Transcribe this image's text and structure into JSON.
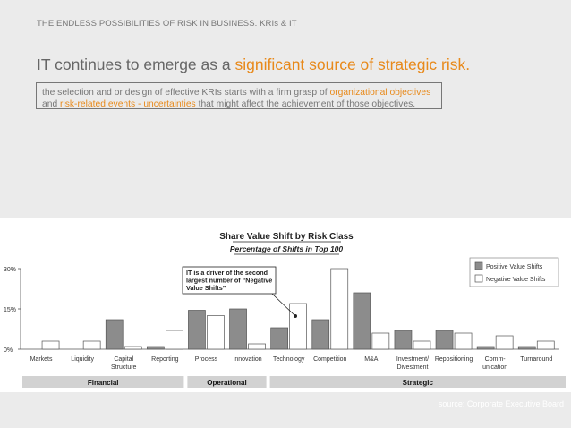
{
  "slide": {
    "header": "THE ENDLESS POSSIBILITIES OF RISK IN BUSINESS. KRIs & IT",
    "headline_plain": "IT continues to emerge as a ",
    "headline_accent": "significant source of strategic risk.",
    "body": {
      "t1": "the selection and or design of effective KRIs starts with a firm grasp of ",
      "a1": "organizational objectives",
      "t2": " and ",
      "a2": "risk-related events - uncertainties",
      "t3": " that might affect the achievement of those objectives."
    },
    "source": "source: Corporate Executive Board",
    "accent_color": "#e8891a"
  },
  "chart_data": {
    "type": "bar",
    "title": "Share Value Shift by Risk Class",
    "subtitle": "Percentage of Shifts in Top 100",
    "ylim": [
      0,
      30
    ],
    "y_ticks": [
      "0%",
      "15%",
      "30%"
    ],
    "categories": [
      "Markets",
      "Liquidity",
      "Capital Structure",
      "Reporting",
      "Process",
      "Innovation",
      "Technology",
      "Competition",
      "M&A",
      "Investment/ Divestment",
      "Repositioning",
      "Comm-unication",
      "Turnaround"
    ],
    "series": [
      {
        "name": "Positive Value Shifts",
        "color": "#8c8c8c",
        "values": [
          0,
          0,
          11,
          1,
          14.5,
          15,
          8,
          11,
          21,
          7,
          7,
          1,
          1
        ]
      },
      {
        "name": "Negative Value Shifts",
        "color": "#ffffff",
        "values": [
          3,
          3,
          1,
          7,
          12.5,
          2,
          17,
          30,
          6,
          3,
          6,
          5,
          3
        ]
      }
    ],
    "groups": [
      {
        "label": "Financial",
        "from": 0,
        "to": 3
      },
      {
        "label": "Operational",
        "from": 4,
        "to": 5
      },
      {
        "label": "Strategic",
        "from": 6,
        "to": 12
      }
    ],
    "callout": "IT is a driver of the second largest number of “Negative Value Shifts”",
    "legend_position": "top-right",
    "grid": false
  }
}
